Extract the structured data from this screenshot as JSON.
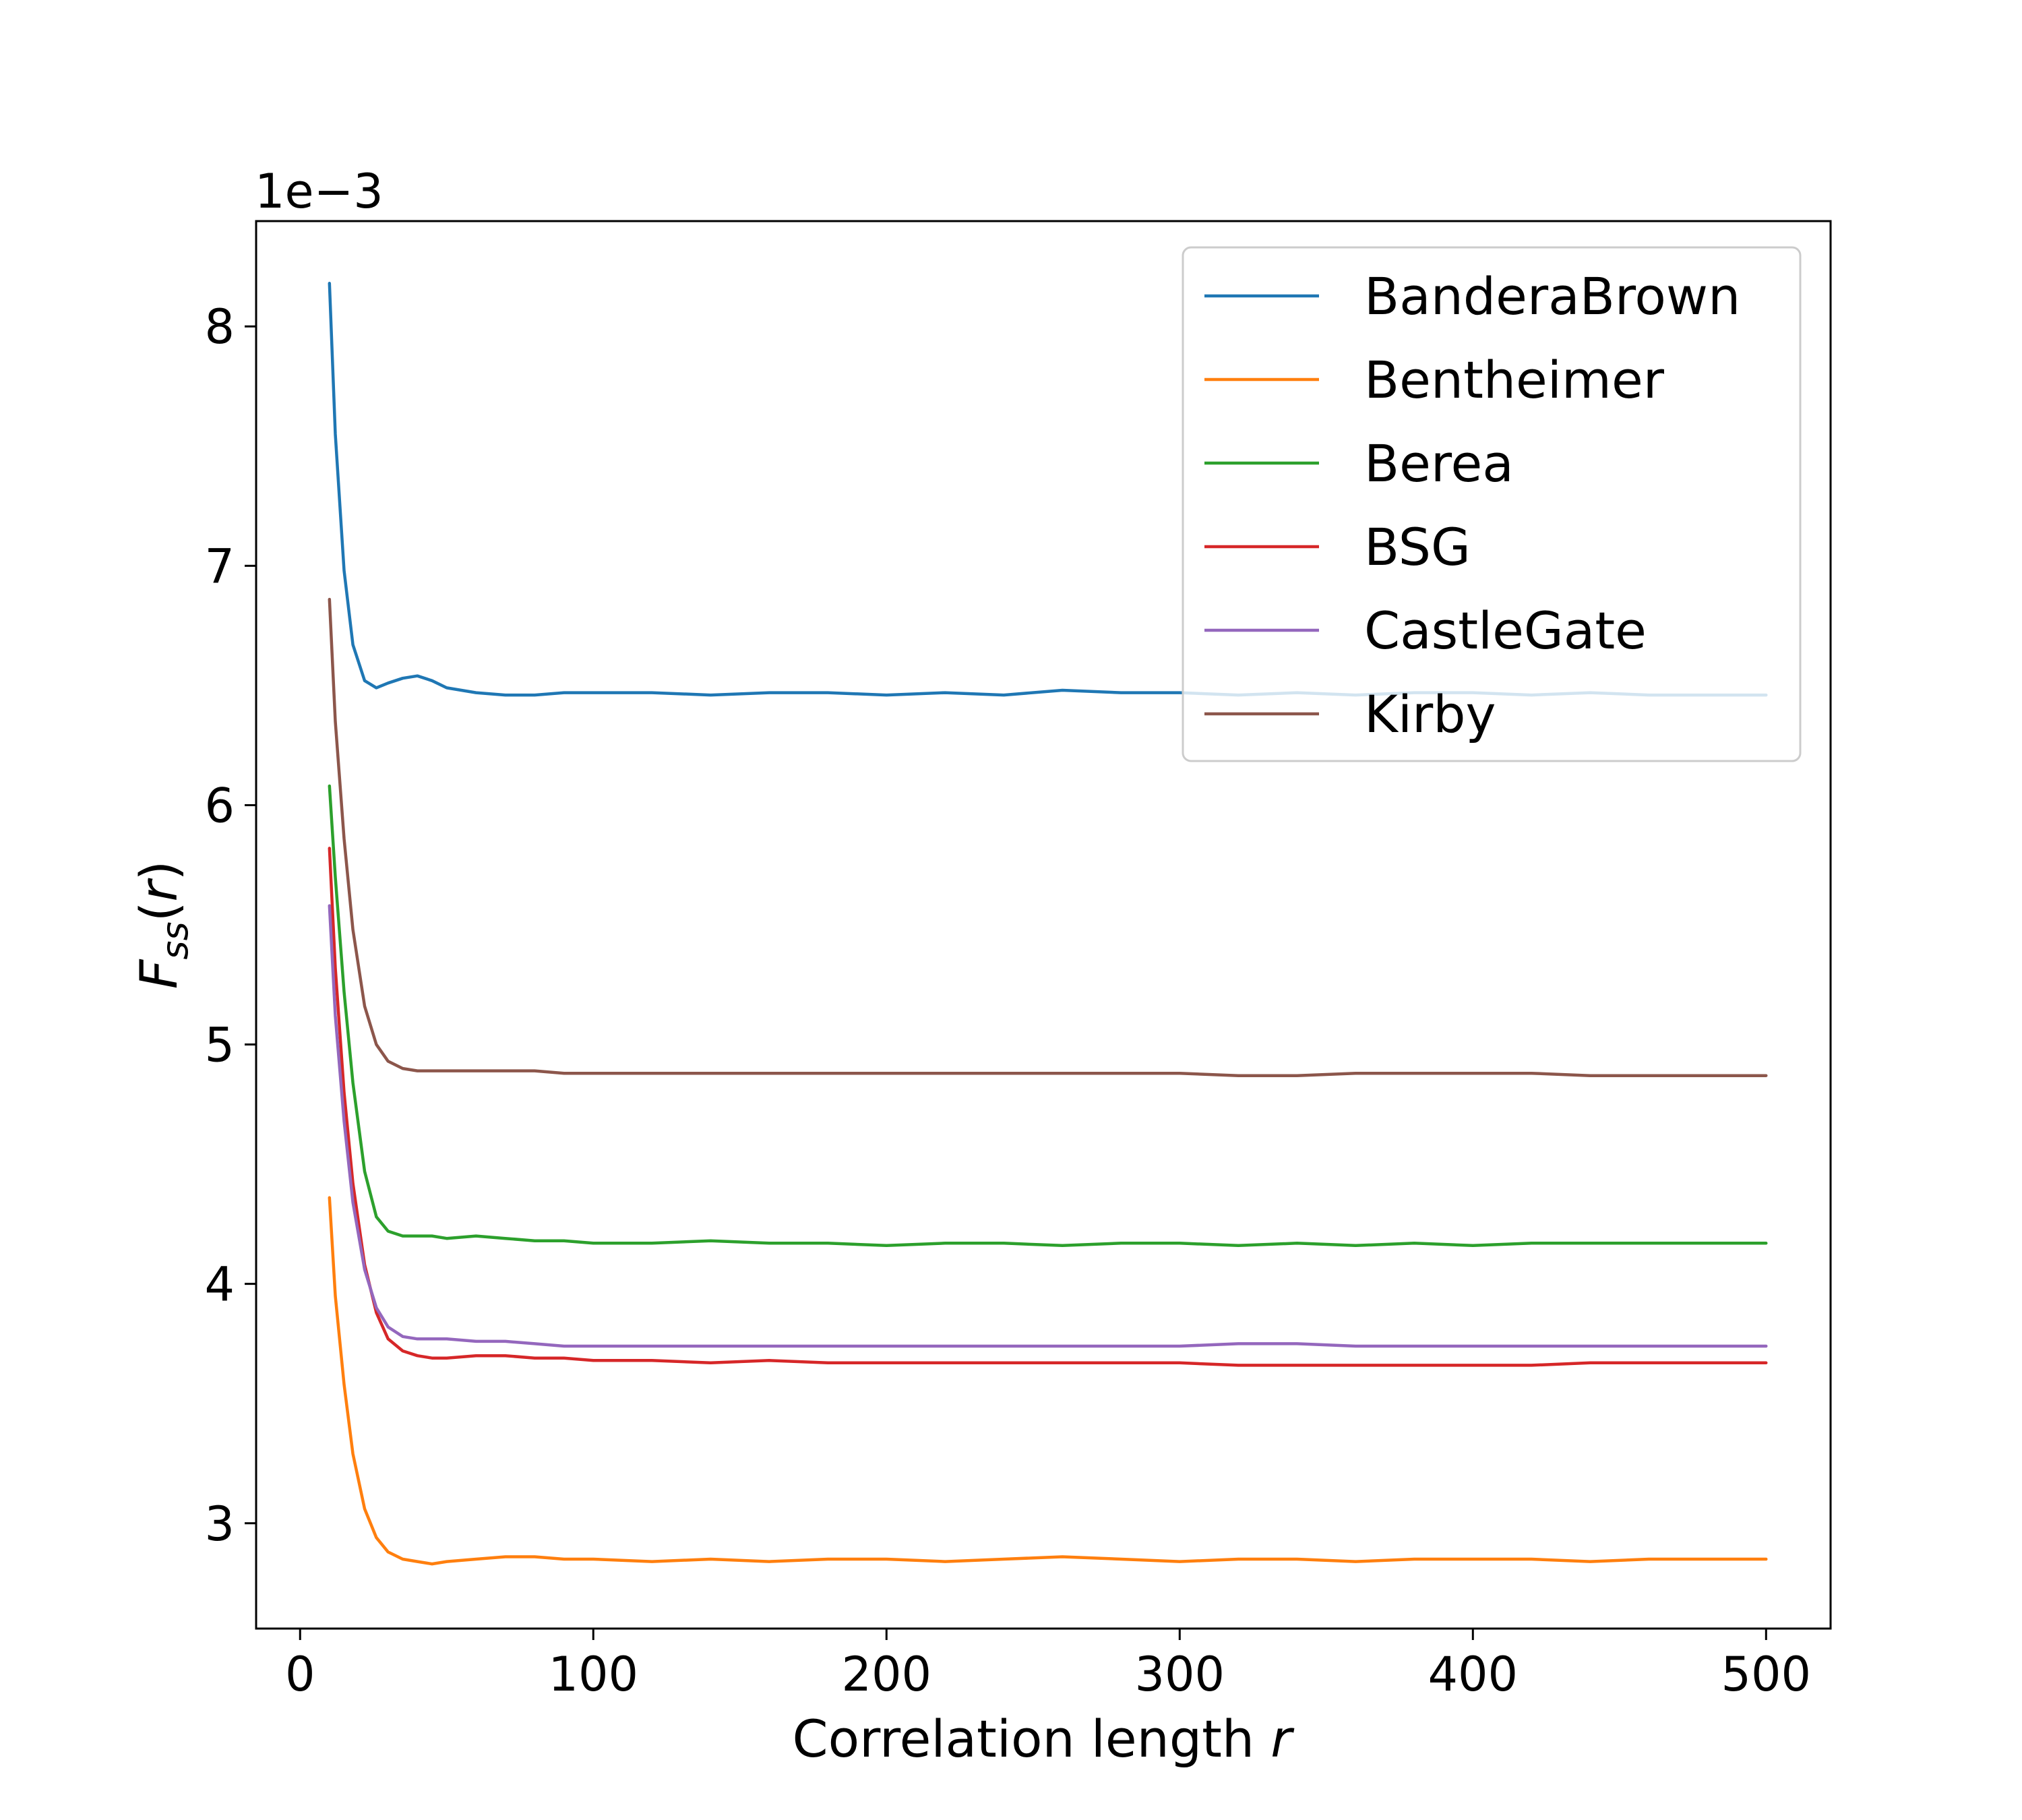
{
  "chart_data": {
    "type": "line",
    "xlabel_text": "Correlation length ",
    "xlabel_var": "r",
    "ylabel": "F_ss(r)",
    "ylabel_main": "F",
    "ylabel_sub": "ss",
    "ylabel_open": "(",
    "ylabel_var": "r",
    "ylabel_close": ")",
    "y_offset_label": "1e−3",
    "y_scale": 0.001,
    "xlim": [
      -15,
      522
    ],
    "ylim": [
      2.56,
      8.44
    ],
    "x_ticks": [
      0,
      100,
      200,
      300,
      400,
      500
    ],
    "y_ticks": [
      3,
      4,
      5,
      6,
      7,
      8
    ],
    "grid": false,
    "legend_position": "top-right",
    "x_points": [
      10,
      12,
      15,
      18,
      22,
      26,
      30,
      35,
      40,
      45,
      50,
      60,
      70,
      80,
      90,
      100,
      120,
      140,
      160,
      180,
      200,
      220,
      240,
      260,
      280,
      300,
      320,
      340,
      360,
      380,
      400,
      420,
      440,
      460,
      480,
      500
    ],
    "series": [
      {
        "name": "BanderaBrown",
        "color": "#1f77b4",
        "values": [
          8.18,
          7.55,
          6.98,
          6.67,
          6.52,
          6.49,
          6.51,
          6.53,
          6.54,
          6.52,
          6.49,
          6.47,
          6.46,
          6.46,
          6.47,
          6.47,
          6.47,
          6.46,
          6.47,
          6.47,
          6.46,
          6.47,
          6.46,
          6.48,
          6.47,
          6.47,
          6.46,
          6.47,
          6.46,
          6.47,
          6.47,
          6.46,
          6.47,
          6.46,
          6.46,
          6.46
        ]
      },
      {
        "name": "Bentheimer",
        "color": "#ff7f0e",
        "values": [
          4.36,
          3.95,
          3.58,
          3.29,
          3.06,
          2.94,
          2.88,
          2.85,
          2.84,
          2.83,
          2.84,
          2.85,
          2.86,
          2.86,
          2.85,
          2.85,
          2.84,
          2.85,
          2.84,
          2.85,
          2.85,
          2.84,
          2.85,
          2.86,
          2.85,
          2.84,
          2.85,
          2.85,
          2.84,
          2.85,
          2.85,
          2.85,
          2.84,
          2.85,
          2.85,
          2.85
        ]
      },
      {
        "name": "Berea",
        "color": "#2ca02c",
        "values": [
          6.08,
          5.7,
          5.22,
          4.84,
          4.47,
          4.28,
          4.22,
          4.2,
          4.2,
          4.2,
          4.19,
          4.2,
          4.19,
          4.18,
          4.18,
          4.17,
          4.17,
          4.18,
          4.17,
          4.17,
          4.16,
          4.17,
          4.17,
          4.16,
          4.17,
          4.17,
          4.16,
          4.17,
          4.16,
          4.17,
          4.16,
          4.17,
          4.17,
          4.17,
          4.17,
          4.17
        ]
      },
      {
        "name": "BSG",
        "color": "#d62728",
        "values": [
          5.82,
          5.32,
          4.8,
          4.42,
          4.08,
          3.88,
          3.77,
          3.72,
          3.7,
          3.69,
          3.69,
          3.7,
          3.7,
          3.69,
          3.69,
          3.68,
          3.68,
          3.67,
          3.68,
          3.67,
          3.67,
          3.67,
          3.67,
          3.67,
          3.67,
          3.67,
          3.66,
          3.66,
          3.66,
          3.66,
          3.66,
          3.66,
          3.67,
          3.67,
          3.67,
          3.67
        ]
      },
      {
        "name": "CastleGate",
        "color": "#9467bd",
        "values": [
          5.58,
          5.12,
          4.68,
          4.34,
          4.06,
          3.9,
          3.82,
          3.78,
          3.77,
          3.77,
          3.77,
          3.76,
          3.76,
          3.75,
          3.74,
          3.74,
          3.74,
          3.74,
          3.74,
          3.74,
          3.74,
          3.74,
          3.74,
          3.74,
          3.74,
          3.74,
          3.75,
          3.75,
          3.74,
          3.74,
          3.74,
          3.74,
          3.74,
          3.74,
          3.74,
          3.74
        ]
      },
      {
        "name": "Kirby",
        "color": "#8c564b",
        "values": [
          6.86,
          6.35,
          5.86,
          5.48,
          5.16,
          5.0,
          4.93,
          4.9,
          4.89,
          4.89,
          4.89,
          4.89,
          4.89,
          4.89,
          4.88,
          4.88,
          4.88,
          4.88,
          4.88,
          4.88,
          4.88,
          4.88,
          4.88,
          4.88,
          4.88,
          4.88,
          4.87,
          4.87,
          4.88,
          4.88,
          4.88,
          4.88,
          4.87,
          4.87,
          4.87,
          4.87
        ]
      }
    ]
  }
}
